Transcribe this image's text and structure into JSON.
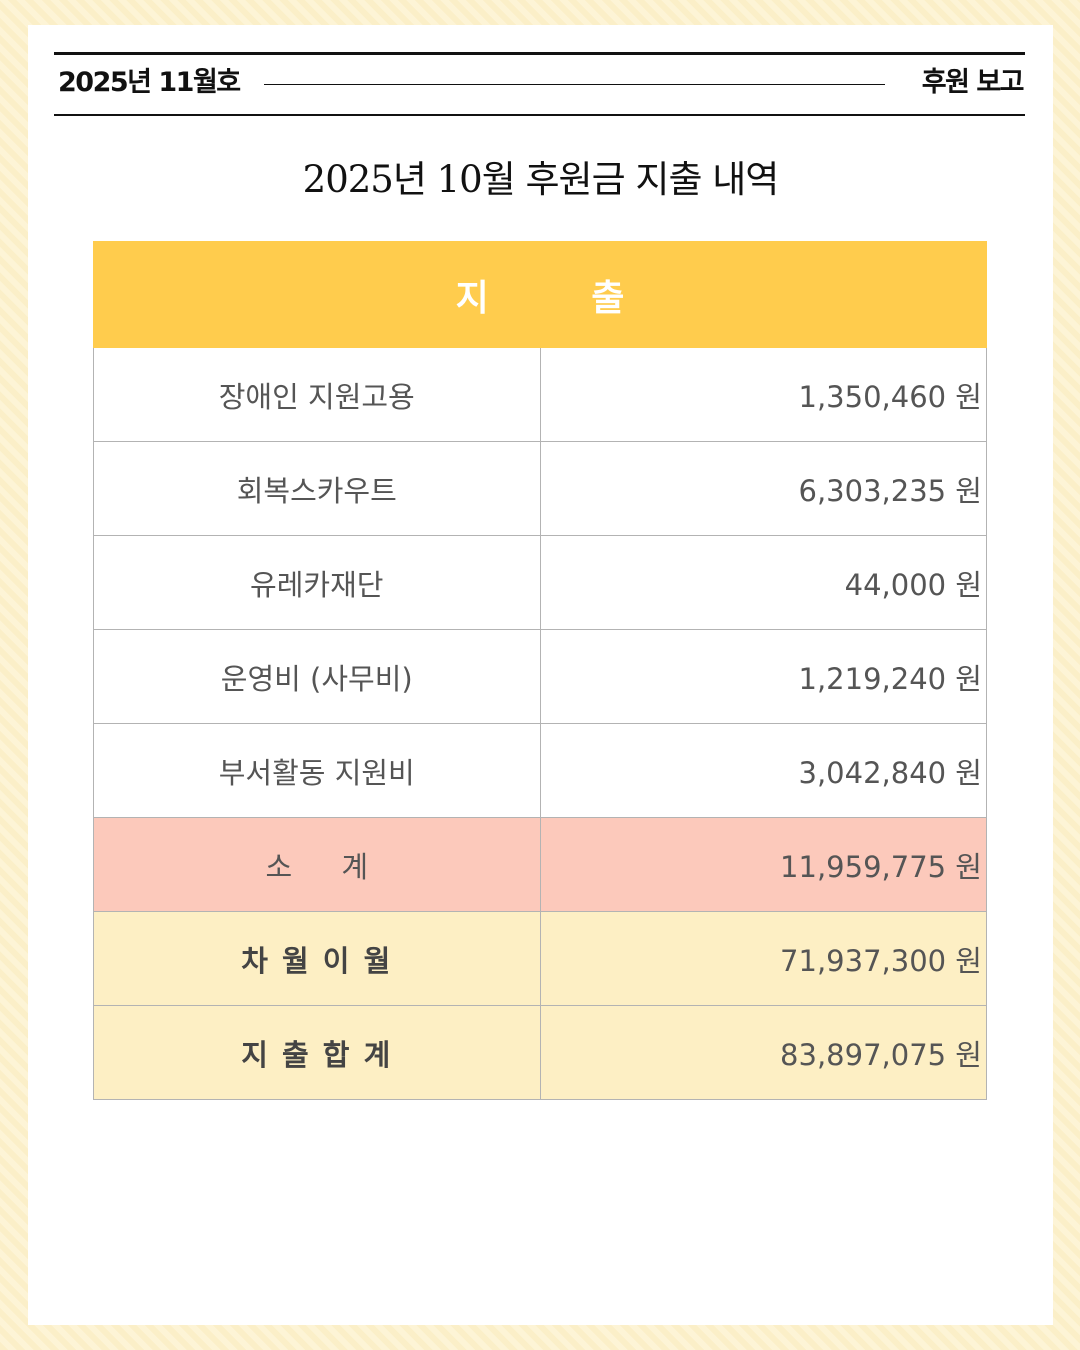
{
  "header": {
    "issue": "2025년 11월호",
    "section": "후원 보고"
  },
  "title": "2025년 10월 후원금 지출 내역",
  "table": {
    "heading": "지 출",
    "rows": [
      {
        "label": "장애인 지원고용",
        "amount": "1,350,460 원"
      },
      {
        "label": "회복스카우트",
        "amount": "6,303,235 원"
      },
      {
        "label": "유레카재단",
        "amount": "44,000 원"
      },
      {
        "label": "운영비 (사무비)",
        "amount": "1,219,240 원"
      },
      {
        "label": "부서활동 지원비",
        "amount": "3,042,840 원"
      }
    ],
    "subtotal": {
      "label": "소 계",
      "amount": "11,959,775 원"
    },
    "carryover": {
      "label": "차 월 이 월",
      "amount": "71,937,300 원"
    },
    "total": {
      "label": "지 출 합 계",
      "amount": "83,897,075 원"
    }
  },
  "colors": {
    "heading_bg": "#ffcc4d",
    "subtotal_bg": "#fcc9bb",
    "total_bg": "#fdefc4",
    "page_bg": "#fbf0cc"
  }
}
